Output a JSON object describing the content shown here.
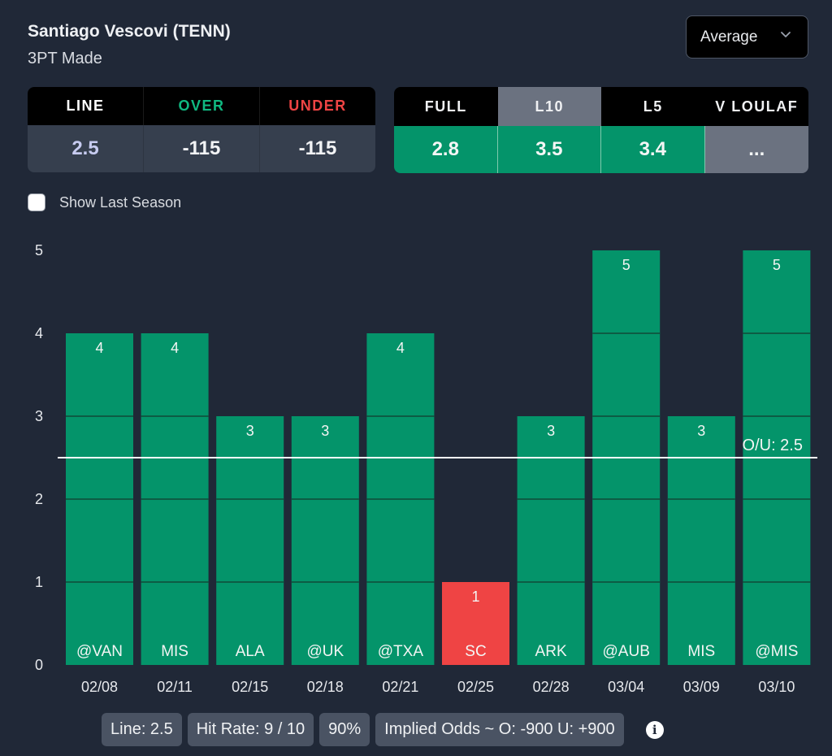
{
  "header": {
    "player": "Santiago Vescovi (TENN)",
    "stat": "3PT Made"
  },
  "dropdown": {
    "selected": "Average",
    "icon": "chevron-down-icon"
  },
  "odds_table": {
    "headers": [
      "LINE",
      "OVER",
      "UNDER"
    ],
    "header_colors": [
      "#ffffff",
      "#10b981",
      "#ef4444"
    ],
    "values": [
      "2.5",
      "-115",
      "-115"
    ],
    "value_colors": [
      "#c7cbf0",
      "#f2f3f5",
      "#f2f3f5"
    ]
  },
  "split_table": {
    "headers": [
      "FULL",
      "L10",
      "L5",
      "V LOULAF"
    ],
    "active_tab": "L10",
    "values": [
      "2.8",
      "3.5",
      "3.4",
      "..."
    ]
  },
  "options": {
    "show_last_season_label": "Show Last Season",
    "show_last_season_checked": false
  },
  "chart_data": {
    "type": "bar",
    "title": "",
    "xlabel": "",
    "ylabel": "",
    "ylim": [
      0,
      5
    ],
    "yticks": [
      0,
      1,
      2,
      3,
      4,
      5
    ],
    "categories": [
      "02/08",
      "02/11",
      "02/15",
      "02/18",
      "02/21",
      "02/25",
      "02/28",
      "03/04",
      "03/09",
      "03/10"
    ],
    "opponents": [
      "@VAN",
      "MIS",
      "ALA",
      "@UK",
      "@TXA",
      "SC",
      "ARK",
      "@AUB",
      "MIS",
      "@MIS"
    ],
    "values": [
      4,
      4,
      3,
      3,
      4,
      1,
      3,
      5,
      3,
      5
    ],
    "line": {
      "value": 2.5,
      "label": "O/U: 2.5"
    },
    "colors": {
      "over": "#04946a",
      "under": "#ef4444",
      "segment_divider": "#0d5c44",
      "line": "#ffffff"
    },
    "grid": false
  },
  "summary": {
    "line_label": "Line: 2.5",
    "hit_rate_label": "Hit Rate: 9 / 10",
    "hit_pct_label": "90%",
    "implied_odds_label": "Implied Odds ~ O: -900 U: +900",
    "info_icon_glyph": "i"
  }
}
